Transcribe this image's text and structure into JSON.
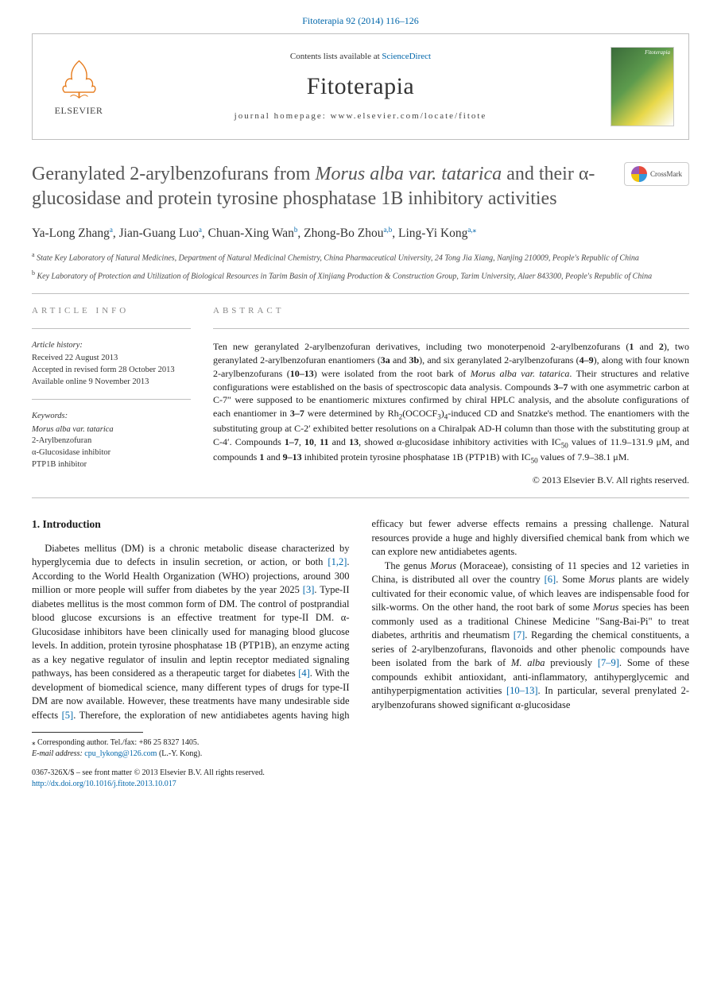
{
  "header": {
    "citation": "Fitoterapia 92 (2014) 116–126"
  },
  "banner": {
    "publisher": "ELSEVIER",
    "contents_prefix": "Contents lists available at ",
    "contents_link": "ScienceDirect",
    "journal": "Fitoterapia",
    "homepage_prefix": "journal homepage: ",
    "homepage_url": "www.elsevier.com/locate/fitote",
    "cover_label": "Fitoterapia"
  },
  "crossmark_label": "CrossMark",
  "title_parts": {
    "p1": "Geranylated 2-arylbenzofurans from ",
    "p2_italic": "Morus alba var. tatarica",
    "p3": " and their α-glucosidase and protein tyrosine phosphatase 1B inhibitory activities"
  },
  "authors": [
    {
      "name": "Ya-Long Zhang",
      "aff": "a"
    },
    {
      "name": "Jian-Guang Luo",
      "aff": "a"
    },
    {
      "name": "Chuan-Xing Wan",
      "aff": "b"
    },
    {
      "name": "Zhong-Bo Zhou",
      "aff": "a,b"
    },
    {
      "name": "Ling-Yi Kong",
      "aff": "a,",
      "corr": true
    }
  ],
  "affiliations": {
    "a": "State Key Laboratory of Natural Medicines, Department of Natural Medicinal Chemistry, China Pharmaceutical University, 24 Tong Jia Xiang, Nanjing 210009, People's Republic of China",
    "b": "Key Laboratory of Protection and Utilization of Biological Resources in Tarim Basin of Xinjiang Production & Construction Group, Tarim University, Alaer 843300, People's Republic of China"
  },
  "info": {
    "label": "ARTICLE INFO",
    "history_head": "Article history:",
    "history": "Received 22 August 2013\nAccepted in revised form 28 October 2013\nAvailable online 9 November 2013",
    "keywords_head": "Keywords:",
    "keywords": "Morus alba var. tatarica\n2-Arylbenzofuran\nα-Glucosidase inhibitor\nPTP1B inhibitor"
  },
  "abstract": {
    "label": "ABSTRACT",
    "text_p1": "Ten new geranylated 2-arylbenzofuran derivatives, including two monoterpenoid 2-arylbenzofurans (",
    "b1": "1",
    "t2": " and ",
    "b2": "2",
    "t3": "), two geranylated 2-arylbenzofuran enantiomers (",
    "b3": "3a",
    "t4": " and ",
    "b4": "3b",
    "t5": "), and six geranylated 2-arylbenzofurans (",
    "b5": "4–9",
    "t6": "), along with four known 2-arylbenzofurans (",
    "b6": "10–13",
    "t7": ") were isolated from the root bark of ",
    "it1": "Morus alba var. tatarica",
    "t8": ". Their structures and relative configurations were established on the basis of spectroscopic data analysis. Compounds ",
    "b7": "3–7",
    "t9": " with one asymmetric carbon at C-7″ were supposed to be enantiomeric mixtures confirmed by chiral HPLC analysis, and the absolute configurations of each enantiomer in ",
    "b8": "3–7",
    "t10": " were determined by Rh",
    "sub1": "2",
    "t11": "(OCOCF",
    "sub2": "3",
    "t12": ")",
    "sub3": "4",
    "t13": "-induced CD and Snatzke's method. The enantiomers with the substituting group at C-2′ exhibited better resolutions on a Chiralpak AD-H column than those with the substituting group at C-4′. Compounds ",
    "b9": "1–7",
    "t14": ", ",
    "b10": "10",
    "t15": ", ",
    "b11": "11",
    "t16": " and ",
    "b12": "13",
    "t17": ", showed α-glucosidase inhibitory activities with IC",
    "sub4": "50",
    "t18": " values of 11.9–131.9 μM, and compounds ",
    "b13": "1",
    "t19": " and ",
    "b14": "9–13",
    "t20": " inhibited protein tyrosine phosphatase 1B (PTP1B) with IC",
    "sub5": "50",
    "t21": " values of 7.9–38.1 μM.",
    "copyright": "© 2013 Elsevier B.V. All rights reserved."
  },
  "body": {
    "section_heading": "1. Introduction",
    "col1_p1a": "Diabetes mellitus (DM) is a chronic metabolic disease characterized by hyperglycemia due to defects in insulin secretion, or action, or both ",
    "ref1": "[1,2]",
    "col1_p1b": ". According to the World Health Organization (WHO) projections, around 300 million or more people will suffer from diabetes by the year 2025 ",
    "ref2": "[3]",
    "col1_p1c": ". Type-II diabetes mellitus is the most common form of DM. The control of postprandial blood glucose excursions is an effective treatment for type-II DM. α-Glucosidase inhibitors have been clinically used for managing blood glucose levels. In addition, protein tyrosine phosphatase 1B (PTP1B), an enzyme acting as a key negative regulator of insulin and leptin receptor mediated signaling pathways, has been considered as a therapeutic target for diabetes ",
    "ref3": "[4]",
    "col1_p1d": ". With the development of biomedical science, many different types of drugs for type-II DM are now available. ",
    "col2_p1a": "However, these treatments have many undesirable side effects ",
    "ref4": "[5]",
    "col2_p1b": ". Therefore, the exploration of new antidiabetes agents having high efficacy but fewer adverse effects remains a pressing challenge. Natural resources provide a huge and highly diversified chemical bank from which we can explore new antidiabetes agents.",
    "col2_p2a": "The genus ",
    "it_morus": "Morus",
    "col2_p2b": " (Moraceae), consisting of 11 species and 12 varieties in China, is distributed all over the country ",
    "ref5": "[6]",
    "col2_p2c": ". Some ",
    "col2_p2d": " plants are widely cultivated for their economic value, of which leaves are indispensable food for silk-worms. On the other hand, the root bark of some ",
    "col2_p2e": " species has been commonly used as a traditional Chinese Medicine \"Sang-Bai-Pi\" to treat diabetes, arthritis and rheumatism ",
    "ref6": "[7]",
    "col2_p2f": ". Regarding the chemical constituents, a series of 2-arylbenzofurans, flavonoids and other phenolic compounds have been isolated from the bark of ",
    "it_malba": "M. alba",
    "col2_p2g": " previously ",
    "ref7": "[7–9]",
    "col2_p2h": ". Some of these compounds exhibit antioxidant, anti-inflammatory, antihyperglycemic and antihyperpigmentation activities ",
    "ref8": "[10–13]",
    "col2_p2i": ". In particular, several prenylated 2-arylbenzofurans showed significant α-glucosidase"
  },
  "footer": {
    "corr_label": "Corresponding author. Tel./fax: +86 25 8327 1405.",
    "email_label": "E-mail address:",
    "email": "cpu_lykong@126.com",
    "email_name": "(L.-Y. Kong).",
    "issn_line": "0367-326X/$ – see front matter © 2013 Elsevier B.V. All rights reserved.",
    "doi": "http://dx.doi.org/10.1016/j.fitote.2013.10.017"
  },
  "colors": {
    "link": "#0066aa",
    "rule": "#bfbfbf",
    "title_gray": "#555555"
  }
}
